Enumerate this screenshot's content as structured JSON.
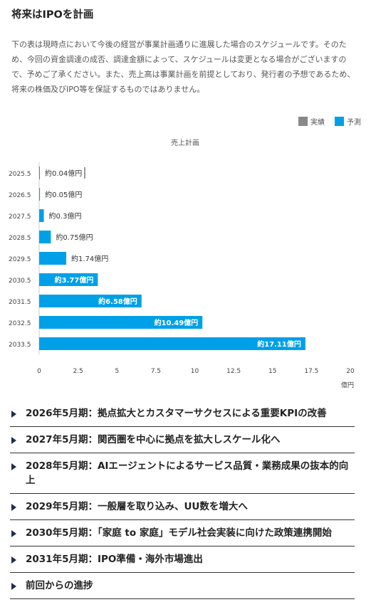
{
  "heading": "将来はIPOを計画",
  "description": "下の表は現時点において今後の経営が事業計画通りに進展した場合のスケジュールです。そのため、今回の資金調達の成否、調達金額によって、スケジュールは変更となる場合がございますので、予めご了承ください。また、売上高は事業計画を前提としており、発行者の予想であるため、将来の株価及びIPO等を保証するものではありません。",
  "legend": [
    {
      "label": "実績",
      "color": "#888888"
    },
    {
      "label": "予測",
      "color": "#00a0e9"
    }
  ],
  "chart_data": {
    "type": "bar",
    "orientation": "horizontal",
    "title": "売上計画",
    "categories": [
      "2025.5",
      "2026.5",
      "2027.5",
      "2028.5",
      "2029.5",
      "2030.5",
      "2031.5",
      "2032.5",
      "2033.5"
    ],
    "series": [
      {
        "name": "予測",
        "color": "#00a0e9",
        "values": [
          0.04,
          0.05,
          0.3,
          0.75,
          1.74,
          3.77,
          6.58,
          10.49,
          17.11
        ]
      }
    ],
    "data_labels": [
      "約0.04億円",
      "約0.05億円",
      "約0.3億円",
      "約0.75億円",
      "約1.74億円",
      "約3.77億円",
      "約6.58億円",
      "約10.49億円",
      "約17.11億円"
    ],
    "xlim": [
      0,
      20
    ],
    "xticks": [
      "0",
      "2.5",
      "5",
      "7.5",
      "10",
      "12.5",
      "15",
      "17.5",
      "20"
    ],
    "xunit": "億円",
    "grid": false,
    "legend_position": "top-right"
  },
  "accordion": [
    "2026年5月期：拠点拡大とカスタマーサクセスによる重要KPIの改善",
    "2027年5月期：関西圏を中心に拠点を拡大しスケール化へ",
    "2028年5月期：AIエージェントによるサービス品質・業務成果の抜本的向上",
    "2029年5月期：一般層を取り込み、UU数を増大へ",
    "2030年5月期：「家庭 to 家庭」モデル社会実装に向けた政策連携開始",
    "2031年5月期：IPO準備・海外市場進出",
    "前回からの進捗"
  ]
}
